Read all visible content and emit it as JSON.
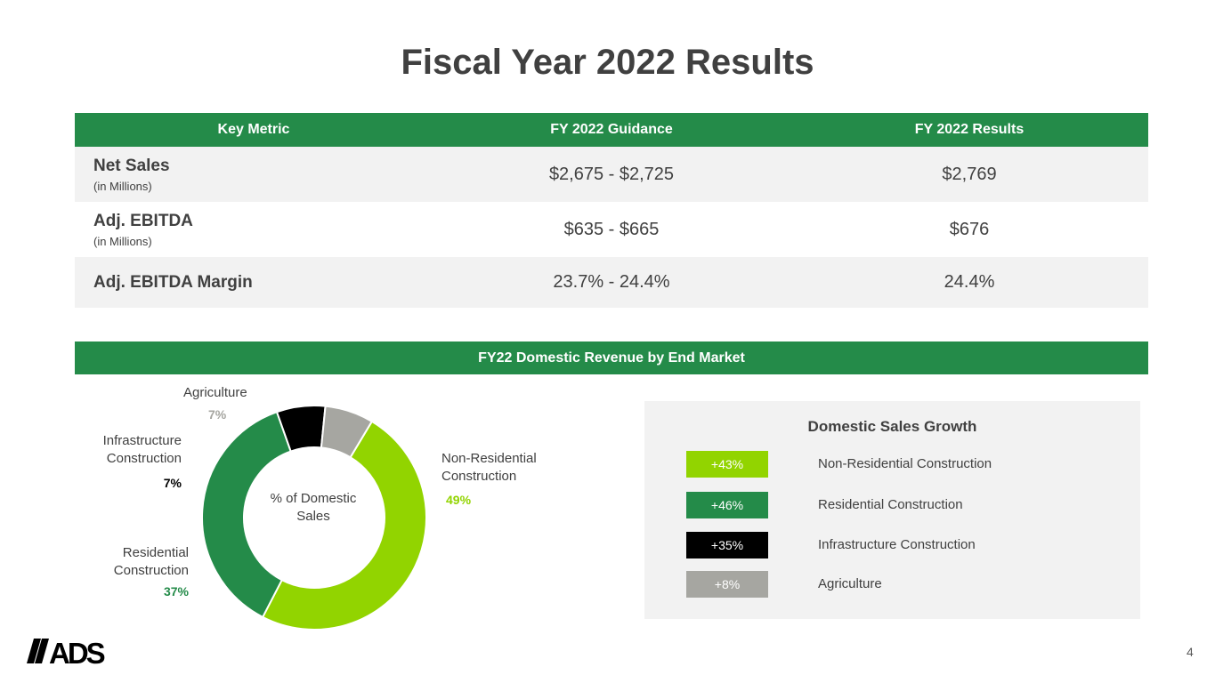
{
  "title": "Fiscal Year 2022 Results",
  "metrics_table": {
    "headers": [
      "Key Metric",
      "FY 2022 Guidance",
      "FY 2022 Results"
    ],
    "rows": [
      {
        "metric": "Net Sales",
        "sub": "(in Millions)",
        "guidance": "$2,675 - $2,725",
        "result": "$2,769"
      },
      {
        "metric": "Adj. EBITDA",
        "sub": "(in Millions)",
        "guidance": "$635 - $665",
        "result": "$676"
      },
      {
        "metric": "Adj. EBITDA Margin",
        "sub": "",
        "guidance": "23.7% - 24.4%",
        "result": "24.4%"
      }
    ]
  },
  "section_title": "FY22 Domestic Revenue by End Market",
  "chart_data": {
    "type": "pie",
    "title": "",
    "center_label": "% of Domestic Sales",
    "slices": [
      {
        "name": "Non-Residential Construction",
        "value": 49,
        "label": "49%",
        "color": "#92d400"
      },
      {
        "name": "Residential Construction",
        "value": 37,
        "label": "37%",
        "color": "#248b49"
      },
      {
        "name": "Infrastructure Construction",
        "value": 7,
        "label": "7%",
        "color": "#000000"
      },
      {
        "name": "Agriculture",
        "value": 7,
        "label": "7%",
        "color": "#a6a6a1"
      }
    ]
  },
  "donut_labels": {
    "nonres_1": "Non-Residential",
    "nonres_2": "Construction",
    "res_1": "Residential",
    "res_2": "Construction",
    "infra_1": "Infrastructure",
    "infra_2": "Construction",
    "ag": "Agriculture"
  },
  "growth": {
    "title": "Domestic Sales Growth",
    "rows": [
      {
        "value": "+43%",
        "label": "Non-Residential Construction",
        "color": "#92d400"
      },
      {
        "value": "+46%",
        "label": "Residential Construction",
        "color": "#248b49"
      },
      {
        "value": "+35%",
        "label": "Infrastructure Construction",
        "color": "#000000"
      },
      {
        "value": "+8%",
        "label": "Agriculture",
        "color": "#a6a6a1"
      }
    ]
  },
  "logo": {
    "text": "ADS",
    "icon": "ads-logo-icon"
  },
  "page_number": "4",
  "colors": {
    "header_green": "#248b49",
    "lime": "#92d400",
    "grey": "#a6a6a1",
    "title": "#404040"
  }
}
